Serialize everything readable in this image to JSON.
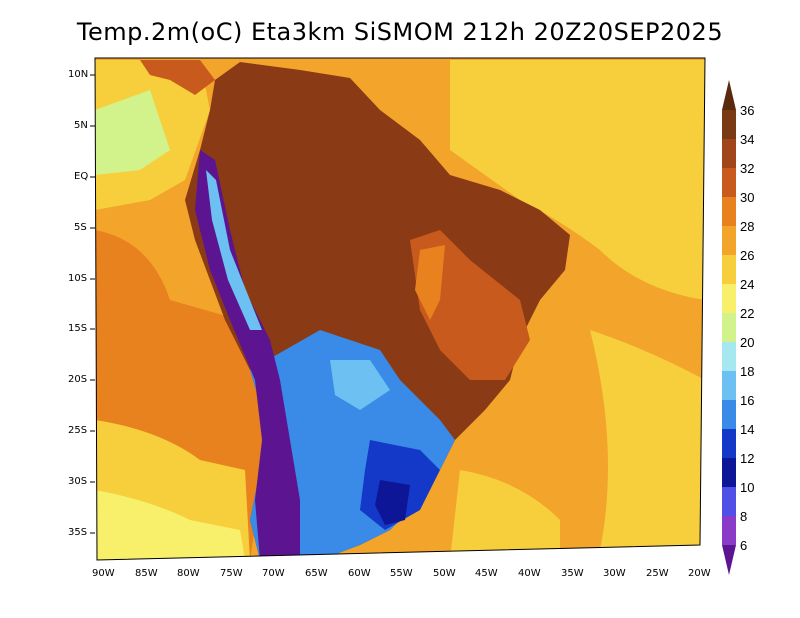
{
  "title": "Temp.2m(oC) Eta3km SiSMOM 212h 20Z20SEP2025",
  "lat_labels": [
    "10N",
    "5N",
    "EQ",
    "5S",
    "10S",
    "15S",
    "20S",
    "25S",
    "30S",
    "35S"
  ],
  "lon_labels": [
    "90W",
    "85W",
    "80W",
    "75W",
    "70W",
    "65W",
    "60W",
    "55W",
    "50W",
    "45W",
    "40W",
    "35W",
    "30W",
    "25W",
    "20W"
  ],
  "colorbar": {
    "labels": [
      "36",
      "34",
      "32",
      "30",
      "28",
      "26",
      "24",
      "22",
      "20",
      "18",
      "16",
      "14",
      "12",
      "10",
      "8",
      "6"
    ],
    "colors": [
      "#5a2a0e",
      "#7a3a14",
      "#a0461a",
      "#c85a1e",
      "#e8821e",
      "#f2a52a",
      "#f7cf3c",
      "#f8ef6a",
      "#d2f28c",
      "#a6e8f0",
      "#6cc0f2",
      "#3a8ae8",
      "#1438c8",
      "#0c1696",
      "#5050e6",
      "#8a3cc8",
      "#5c1490"
    ]
  },
  "colors": {
    "ocean_warm": "#f2a52a",
    "ocean_hot": "#e8821e",
    "ocean_mild": "#f7cf3c",
    "land_hot": "#8a3a14",
    "land_warm": "#c85a1e",
    "land_cool": "#3a8ae8",
    "land_cold": "#1438c8",
    "andes": "#5c1490"
  }
}
